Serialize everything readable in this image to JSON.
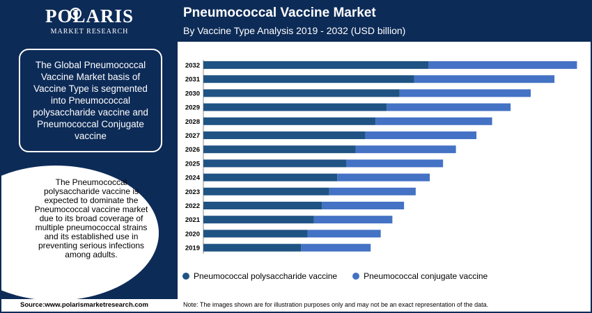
{
  "brand": {
    "name": "POLARIS",
    "subtitle": "MARKET RESEARCH"
  },
  "header": {
    "title": "Pneumococcal Vaccine Market",
    "subtitle": "By Vaccine Type Analysis 2019 - 2032 (USD billion)"
  },
  "left": {
    "box1": "The Global Pneumococcal Vaccine Market basis of Vaccine Type is segmented into Pneumococcal polysaccharide vaccine and Pneumococcal Conjugate vaccine",
    "bubble": "The Pneumococcal polysaccharide vaccine is expected to dominate the Pneumococcal vaccine market due to its broad coverage of multiple pneumococcal strains and its established use in preventing serious infections among adults."
  },
  "chart_data": {
    "type": "bar",
    "orientation": "horizontal",
    "stacked": true,
    "categories": [
      "2032",
      "2031",
      "2030",
      "2029",
      "2028",
      "2027",
      "2026",
      "2025",
      "2024",
      "2023",
      "2022",
      "2021",
      "2020",
      "2019"
    ],
    "series": [
      {
        "name": "Pneumococcal polysaccharide vaccine",
        "color": "#1f5383",
        "values": [
          5.6,
          5.24,
          4.88,
          4.56,
          4.28,
          4.03,
          3.79,
          3.55,
          3.33,
          3.13,
          2.95,
          2.75,
          2.59,
          2.43
        ]
      },
      {
        "name": "Pneumococcal conjugate vaccine",
        "color": "#4472c4",
        "values": [
          3.69,
          3.49,
          3.26,
          3.08,
          2.9,
          2.76,
          2.49,
          2.41,
          2.3,
          2.15,
          2.04,
          1.95,
          1.82,
          1.73
        ]
      }
    ],
    "xlim": [
      0,
      9.3
    ],
    "grid": false,
    "legend_position": "bottom"
  },
  "footer": {
    "source": "Source:www.polarismarketresearch.com",
    "note": "Note: The images shown are for illustration purposes only and may not be an exact representation of the data."
  }
}
